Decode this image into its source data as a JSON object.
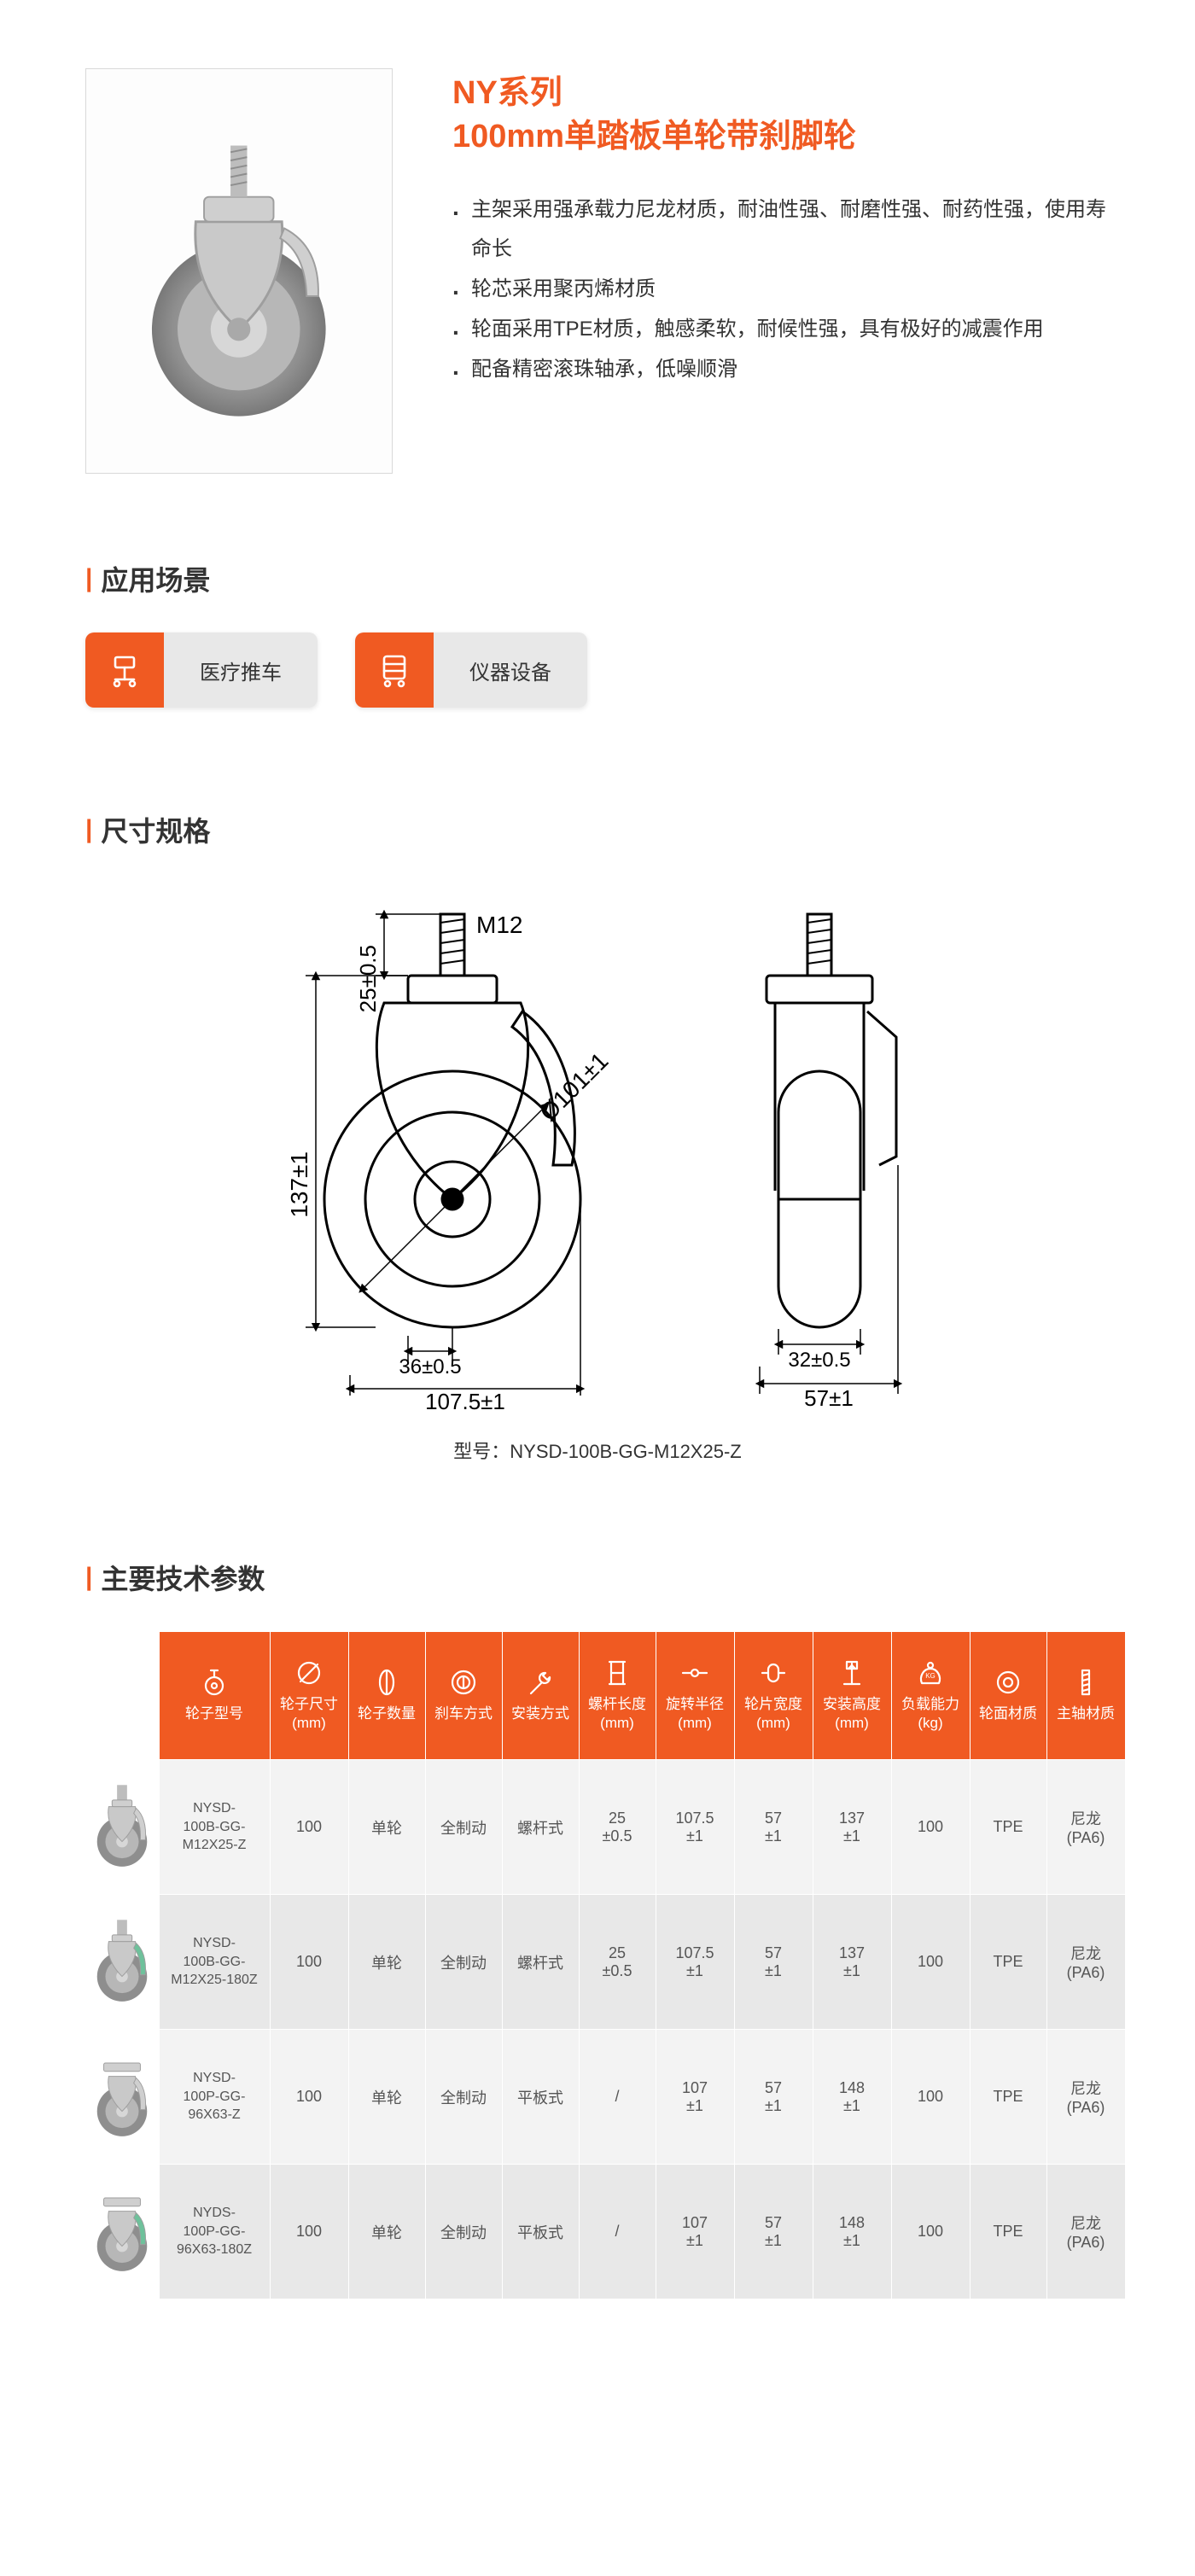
{
  "colors": {
    "accent": "#f05a22",
    "chip_grey": "#e8e8e8",
    "row_a": "#f3f3f3",
    "row_b": "#e8e8e8",
    "text": "#333333",
    "table_text": "#555555"
  },
  "product": {
    "series": "NY系列",
    "name": "100mm单踏板单轮带刹脚轮",
    "bullets": [
      "主架采用强承载力尼龙材质，耐油性强、耐磨性强、耐药性强，使用寿命长",
      "轮芯采用聚丙烯材质",
      "轮面采用TPE材质，触感柔软，耐候性强，具有极好的减震作用",
      "配备精密滚珠轴承，低噪顺滑"
    ]
  },
  "sections": {
    "applications": "应用场景",
    "dimensions": "尺寸规格",
    "specs": "主要技术参数"
  },
  "applications": [
    {
      "icon": "cart-icon",
      "label": "医疗推车"
    },
    {
      "icon": "equip-icon",
      "label": "仪器设备"
    }
  ],
  "drawing": {
    "model_caption_prefix": "型号：",
    "model": "NYSD-100B-GG-M12X25-Z",
    "labels": {
      "thread": "M12",
      "stem_len": "25±0.5",
      "diameter": "Ø101±1",
      "overall_h": "137±1",
      "offset": "36±0.5",
      "swivel_r": "107.5±1",
      "wheel_w": "32±0.5",
      "side_w": "57±1"
    }
  },
  "spec_table": {
    "columns": [
      {
        "key": "image",
        "label": "",
        "icon": "none",
        "width": 86
      },
      {
        "key": "model",
        "label": "轮子型号",
        "icon": "wheel-icon",
        "width": 130
      },
      {
        "key": "size",
        "label": "轮子尺寸\n(mm)",
        "icon": "diam-icon",
        "width": 92
      },
      {
        "key": "qty",
        "label": "轮子数量",
        "icon": "count-icon",
        "width": 90
      },
      {
        "key": "brake",
        "label": "刹车方式",
        "icon": "brake-icon",
        "width": 90
      },
      {
        "key": "mount",
        "label": "安装方式",
        "icon": "wrench-icon",
        "width": 90
      },
      {
        "key": "stem",
        "label": "螺杆长度\n(mm)",
        "icon": "stem-icon",
        "width": 90
      },
      {
        "key": "radius",
        "label": "旋转半径\n(mm)",
        "icon": "radius-icon",
        "width": 92
      },
      {
        "key": "width",
        "label": "轮片宽度\n(mm)",
        "icon": "width-icon",
        "width": 92
      },
      {
        "key": "height",
        "label": "安装高度\n(mm)",
        "icon": "height-icon",
        "width": 92
      },
      {
        "key": "load",
        "label": "负载能力\n(kg)",
        "icon": "load-icon",
        "width": 92
      },
      {
        "key": "tread",
        "label": "轮面材质",
        "icon": "ring-icon",
        "width": 90
      },
      {
        "key": "shaft",
        "label": "主轴材质",
        "icon": "shaft-icon",
        "width": 92
      }
    ],
    "rows": [
      {
        "stripe": "a",
        "thumb_decal": "none",
        "model": "NYSD-100B-GG-M12X25-Z",
        "size": "100",
        "qty": "单轮",
        "brake": "全制动",
        "mount": "螺杆式",
        "stem": "25\n±0.5",
        "radius": "107.5\n±1",
        "width": "57\n±1",
        "height": "137\n±1",
        "load": "100",
        "tread": "TPE",
        "shaft": "尼龙\n(PA6)"
      },
      {
        "stripe": "b",
        "thumb_decal": "green",
        "model": "NYSD-100B-GG-M12X25-180Z",
        "size": "100",
        "qty": "单轮",
        "brake": "全制动",
        "mount": "螺杆式",
        "stem": "25\n±0.5",
        "radius": "107.5\n±1",
        "width": "57\n±1",
        "height": "137\n±1",
        "load": "100",
        "tread": "TPE",
        "shaft": "尼龙\n(PA6)"
      },
      {
        "stripe": "a",
        "thumb_decal": "none",
        "model": "NYSD-100P-GG-96X63-Z",
        "size": "100",
        "qty": "单轮",
        "brake": "全制动",
        "mount": "平板式",
        "stem": "/",
        "radius": "107\n±1",
        "width": "57\n±1",
        "height": "148\n±1",
        "load": "100",
        "tread": "TPE",
        "shaft": "尼龙\n(PA6)"
      },
      {
        "stripe": "b",
        "thumb_decal": "green",
        "model": "NYDS-100P-GG-96X63-180Z",
        "size": "100",
        "qty": "单轮",
        "brake": "全制动",
        "mount": "平板式",
        "stem": "/",
        "radius": "107\n±1",
        "width": "57\n±1",
        "height": "148\n±1",
        "load": "100",
        "tread": "TPE",
        "shaft": "尼龙\n(PA6)"
      }
    ]
  }
}
